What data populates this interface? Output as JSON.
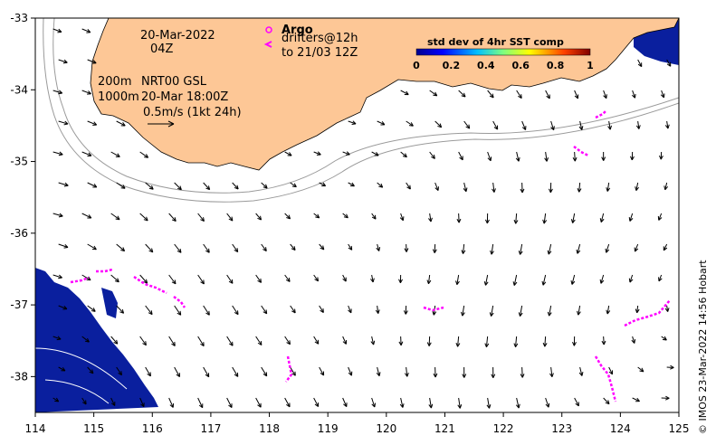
{
  "map": {
    "lon_range": [
      114,
      125
    ],
    "lat_range": [
      -38.5,
      -33
    ],
    "x_ticks": [
      "114",
      "115",
      "116",
      "117",
      "118",
      "119",
      "120",
      "121",
      "122",
      "123",
      "124",
      "125"
    ],
    "y_ticks": [
      "-33",
      "-34",
      "-35",
      "-36",
      "-37",
      "-38"
    ],
    "land_color": "#fdc796",
    "ocean_color": "#ffffff",
    "arrow_color": "#000000",
    "drifter_color": "#ff00ff",
    "sst_color": "#0a1f9e"
  },
  "annotations": {
    "date": "20-Mar-2022",
    "time": "04Z",
    "contour_200": "200m",
    "contour_1000": "1000m",
    "product": "NRT00 GSL",
    "product_time": "20-Mar 18:00Z",
    "scale_label": "0.5m/s (1kt 24h)"
  },
  "legend": {
    "argo_label": "Argo",
    "drifters_label": "drifters@12h",
    "drifters_to": "to 21/03 12Z",
    "colorbar_title": "std dev of 4hr SST comp",
    "colorbar_ticks": [
      "0",
      "0.2",
      "0.4",
      "0.6",
      "0.8",
      "1"
    ]
  },
  "credit": "© IMOS 23-Mar-2022 14:56 Hobart"
}
